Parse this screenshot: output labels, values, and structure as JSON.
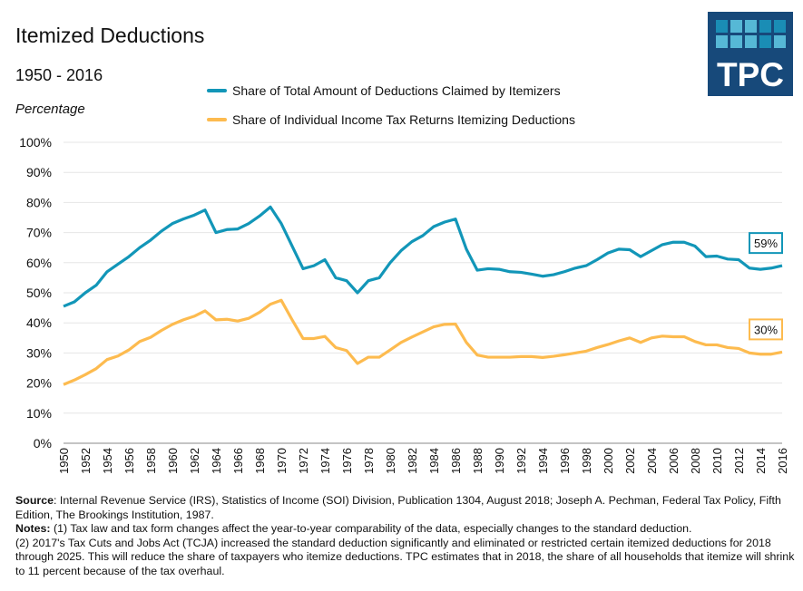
{
  "header": {
    "title": "Itemized Deductions",
    "subtitle": "1950 - 2016",
    "brand": "TPC"
  },
  "colors": {
    "blue": "#1296b8",
    "orange": "#fdbb4f",
    "logo_bg": "#17497a",
    "grid": "#e6e6e6"
  },
  "chart_data": {
    "type": "line",
    "title": "Itemized Deductions",
    "subtitle": "1950 - 2016",
    "ylabel": "Percentage",
    "xlabel": "",
    "ylim": [
      0,
      100
    ],
    "yticks": [
      "0%",
      "10%",
      "20%",
      "30%",
      "40%",
      "50%",
      "60%",
      "70%",
      "80%",
      "90%",
      "100%"
    ],
    "xlim": [
      1950,
      2016
    ],
    "grid": true,
    "legend_placement": "top-center",
    "x": [
      1950,
      1951,
      1952,
      1953,
      1954,
      1955,
      1956,
      1957,
      1958,
      1959,
      1960,
      1961,
      1962,
      1963,
      1964,
      1965,
      1966,
      1967,
      1968,
      1969,
      1970,
      1971,
      1972,
      1973,
      1974,
      1975,
      1976,
      1977,
      1978,
      1979,
      1980,
      1981,
      1982,
      1983,
      1984,
      1985,
      1986,
      1987,
      1988,
      1989,
      1990,
      1991,
      1992,
      1993,
      1994,
      1995,
      1996,
      1997,
      1998,
      1999,
      2000,
      2001,
      2002,
      2003,
      2004,
      2005,
      2006,
      2007,
      2008,
      2009,
      2010,
      2011,
      2012,
      2013,
      2014,
      2015,
      2016
    ],
    "series": [
      {
        "name": "Share of Total Amount of Deductions Claimed by Itemizers",
        "color": "#1296b8",
        "end_label": "59%",
        "values": [
          45.5,
          47,
          50,
          52.5,
          57,
          59.5,
          62,
          65,
          67.5,
          70.5,
          73,
          74.5,
          75.8,
          77.5,
          70,
          71,
          71.2,
          73,
          75.5,
          78.5,
          73,
          65.5,
          58,
          59,
          61,
          55,
          54,
          50,
          54,
          55,
          60,
          64,
          67,
          69,
          72,
          73.5,
          74.5,
          64.5,
          57.5,
          58,
          57.8,
          57,
          56.8,
          56.2,
          55.5,
          56,
          57,
          58.2,
          59,
          61,
          63.2,
          64.5,
          64.3,
          62,
          64,
          66,
          66.8,
          66.8,
          65.5,
          62,
          62.2,
          61.2,
          61,
          58.2,
          57.8,
          58.2,
          59
        ]
      },
      {
        "name": "Share of Individual Income Tax Returns Itemizing Deductions",
        "color": "#fdbb4f",
        "end_label": "30%",
        "values": [
          19.5,
          21,
          22.8,
          24.8,
          27.8,
          29,
          31,
          33.8,
          35.2,
          37.5,
          39.5,
          41,
          42.2,
          44,
          41,
          41.2,
          40.6,
          41.5,
          43.5,
          46.2,
          47.5,
          41,
          34.8,
          34.8,
          35.5,
          31.8,
          30.8,
          26.5,
          28.6,
          28.6,
          31,
          33.5,
          35.3,
          37,
          38.7,
          39.5,
          39.6,
          33.5,
          29.3,
          28.6,
          28.6,
          28.6,
          28.8,
          28.8,
          28.5,
          28.9,
          29.4,
          30,
          30.6,
          31.8,
          32.8,
          34,
          35,
          33.5,
          35,
          35.6,
          35.4,
          35.4,
          33.8,
          32.7,
          32.7,
          31.8,
          31.5,
          30,
          29.6,
          29.6,
          30.3
        ]
      }
    ]
  },
  "notes": {
    "source_label": "Source",
    "source_text": ": Internal Revenue Service (IRS), Statistics of Income (SOI) Division, Publication 1304, August 2018; Joseph A. Pechman, Federal Tax Policy, Fifth Edition, The Brookings Institution, 1987.",
    "notes_label": "Notes:",
    "notes_text": " (1) Tax law and tax form changes affect the year-to-year comparability of the data, especially changes to the standard deduction.",
    "notes_text2": "(2) 2017's Tax Cuts and Jobs Act (TCJA) increased the standard deduction significantly and eliminated or restricted certain itemized deductions for 2018 through 2025. This will reduce the share of taxpayers who itemize deductions. TPC estimates that in 2018, the share of all households that itemize will shrink to 11 percent because of the tax overhaul."
  }
}
